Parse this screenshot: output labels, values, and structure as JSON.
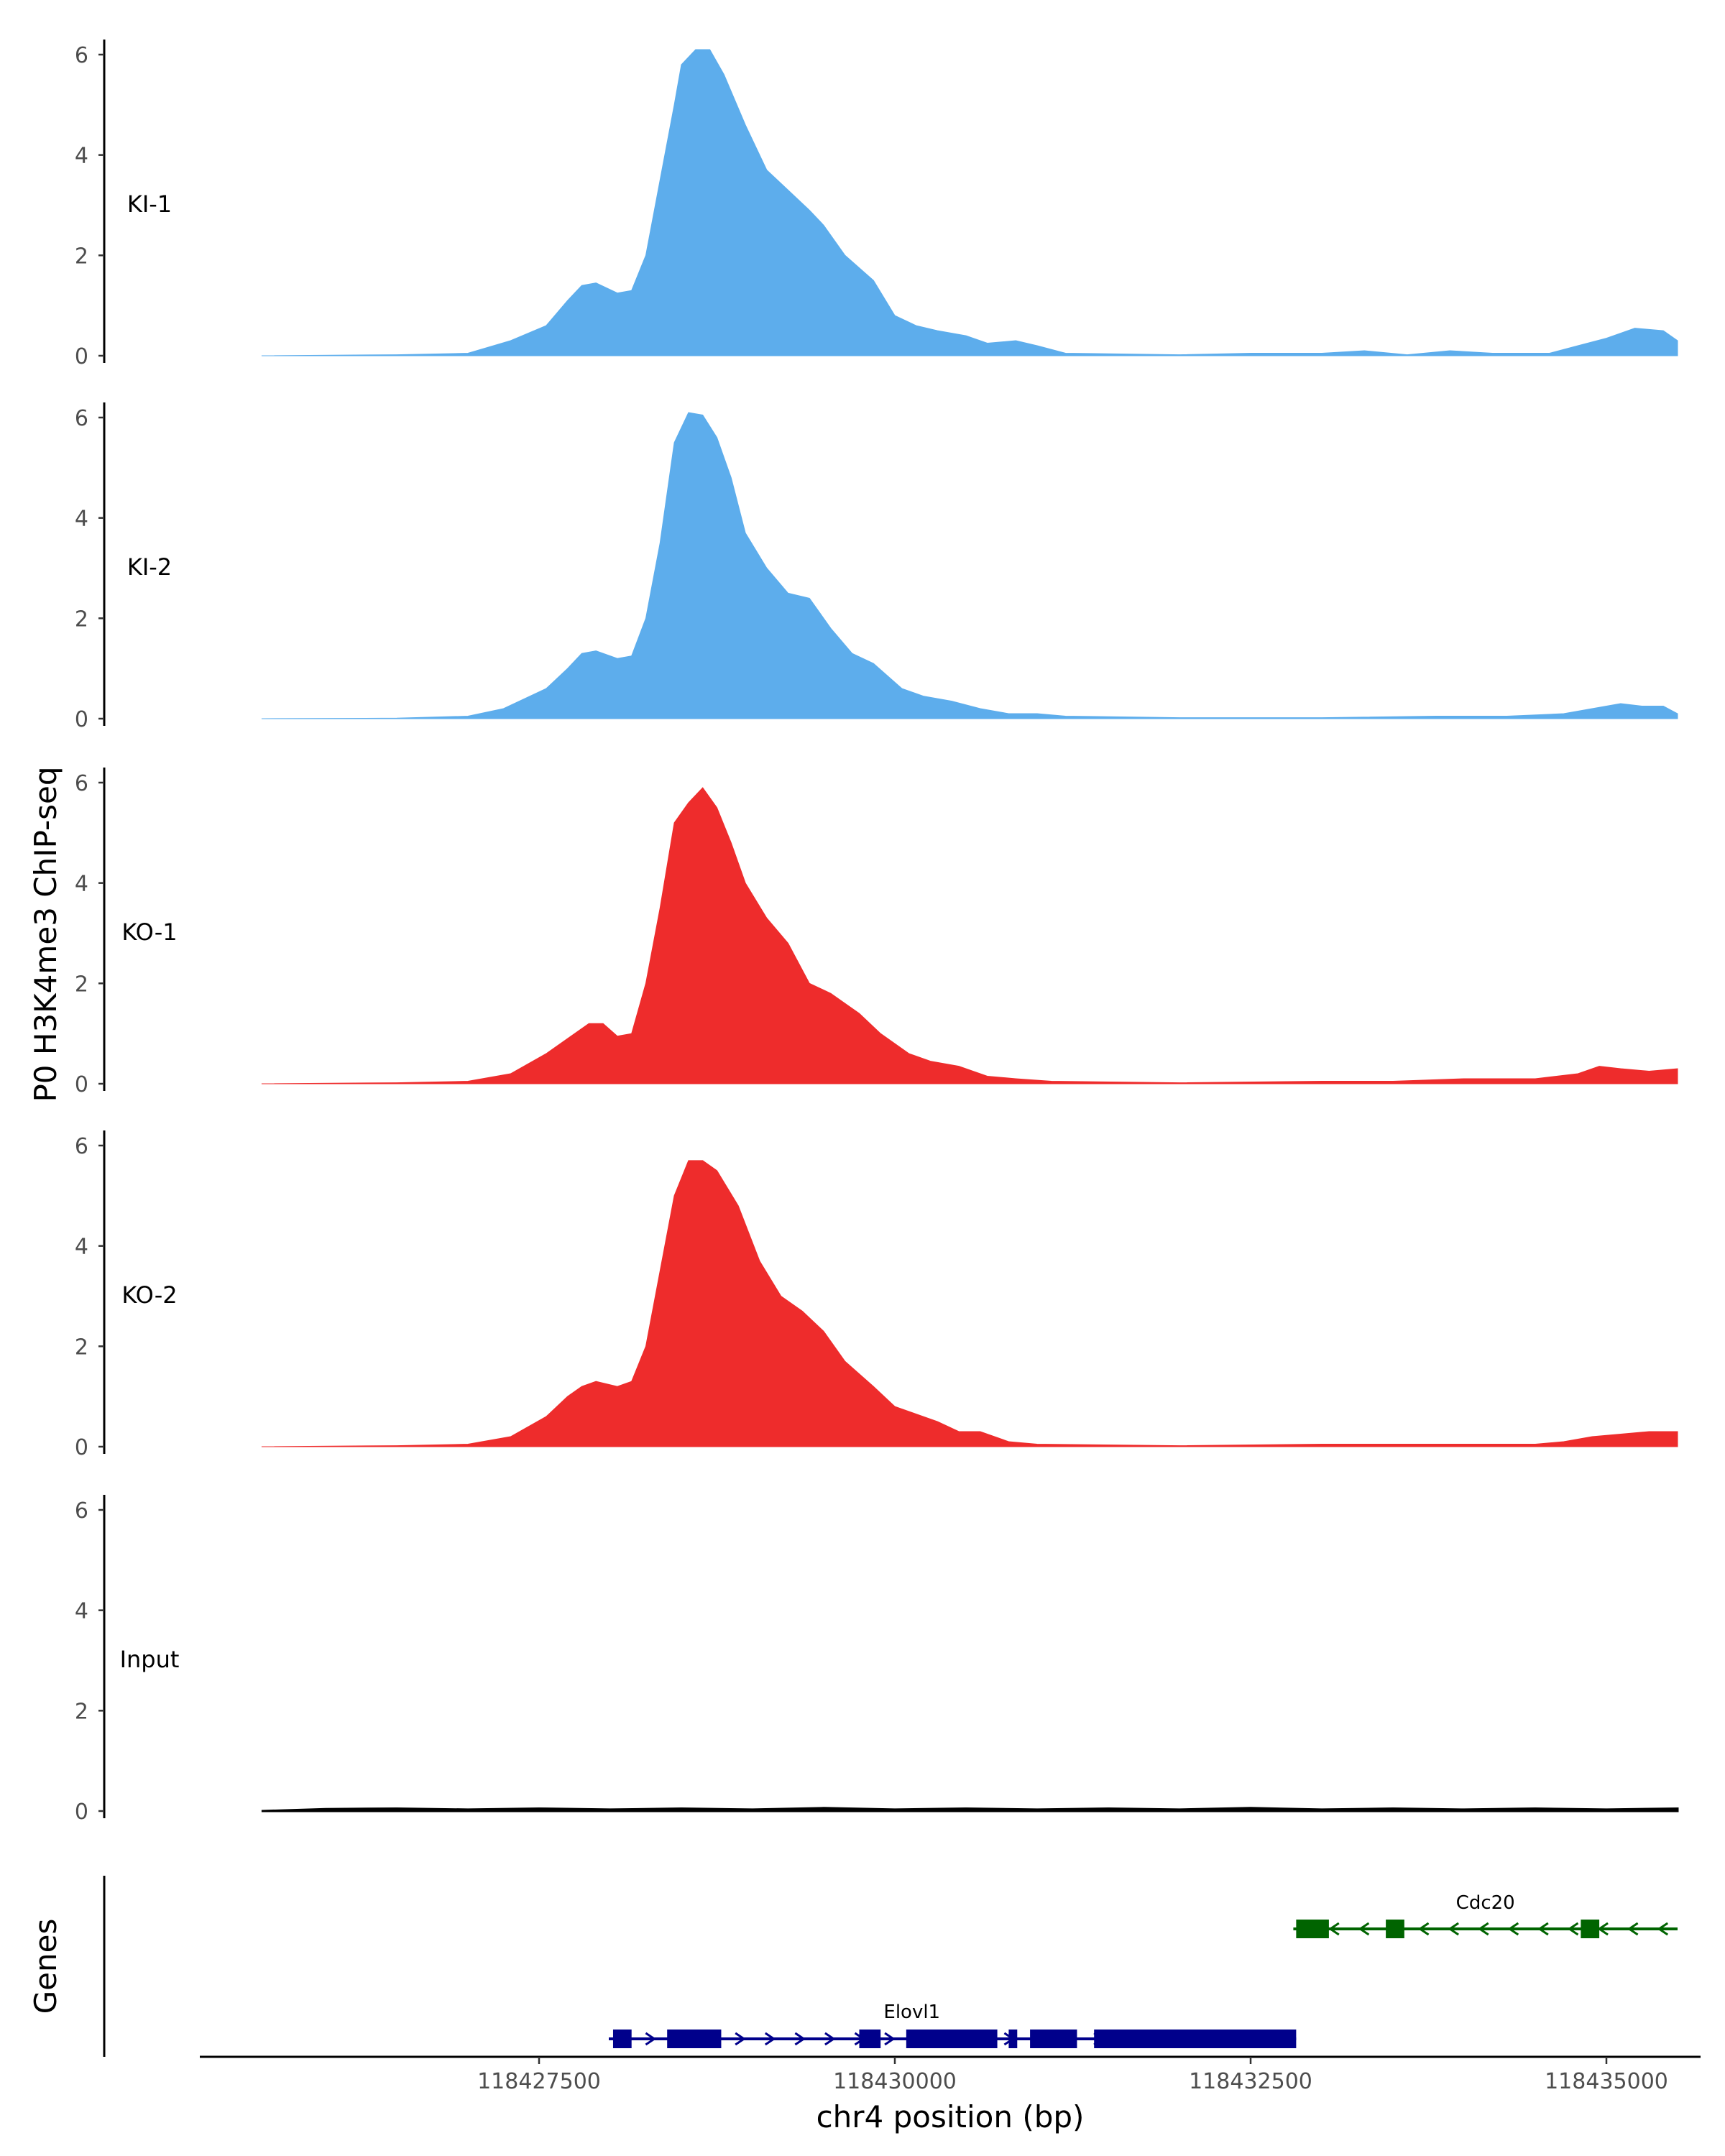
{
  "chart_data": {
    "type": "area",
    "title": "",
    "ylabel": "P0 H3K4me3 ChIP-seq",
    "xlabel": "chr4 position (bp)",
    "xlim": [
      118424300,
      118435500
    ],
    "ylim": [
      0,
      6.3
    ],
    "yticks": [
      0,
      2,
      4,
      6
    ],
    "xticks": [
      118427500,
      118430000,
      118432500,
      118435000
    ],
    "xtick_labels": [
      "118427500",
      "118430000",
      "118432500",
      "118435000"
    ],
    "tracks": [
      {
        "name": "KI-1",
        "color": "#5DADEC",
        "points": [
          [
            118425550,
            0
          ],
          [
            118426500,
            0.02
          ],
          [
            118427000,
            0.05
          ],
          [
            118427300,
            0.3
          ],
          [
            118427550,
            0.6
          ],
          [
            118427700,
            1.1
          ],
          [
            118427800,
            1.4
          ],
          [
            118427900,
            1.45
          ],
          [
            118428050,
            1.25
          ],
          [
            118428150,
            1.3
          ],
          [
            118428250,
            2.0
          ],
          [
            118428350,
            3.5
          ],
          [
            118428450,
            5.0
          ],
          [
            118428500,
            5.8
          ],
          [
            118428600,
            6.1
          ],
          [
            118428700,
            6.1
          ],
          [
            118428800,
            5.6
          ],
          [
            118428950,
            4.6
          ],
          [
            118429100,
            3.7
          ],
          [
            118429250,
            3.3
          ],
          [
            118429400,
            2.9
          ],
          [
            118429500,
            2.6
          ],
          [
            118429650,
            2.0
          ],
          [
            118429850,
            1.5
          ],
          [
            118430000,
            0.8
          ],
          [
            118430150,
            0.6
          ],
          [
            118430300,
            0.5
          ],
          [
            118430500,
            0.4
          ],
          [
            118430650,
            0.25
          ],
          [
            118430850,
            0.3
          ],
          [
            118431000,
            0.2
          ],
          [
            118431200,
            0.05
          ],
          [
            118432000,
            0.02
          ],
          [
            118432500,
            0.05
          ],
          [
            118433000,
            0.05
          ],
          [
            118433300,
            0.1
          ],
          [
            118433600,
            0.02
          ],
          [
            118433900,
            0.1
          ],
          [
            118434200,
            0.05
          ],
          [
            118434600,
            0.05
          ],
          [
            118434800,
            0.2
          ],
          [
            118435000,
            0.35
          ],
          [
            118435200,
            0.55
          ],
          [
            118435400,
            0.5
          ],
          [
            118435500,
            0.3
          ]
        ]
      },
      {
        "name": "KI-2",
        "color": "#5DADEC",
        "points": [
          [
            118425550,
            0
          ],
          [
            118426500,
            0.01
          ],
          [
            118427000,
            0.05
          ],
          [
            118427250,
            0.2
          ],
          [
            118427550,
            0.6
          ],
          [
            118427700,
            1.0
          ],
          [
            118427800,
            1.3
          ],
          [
            118427900,
            1.35
          ],
          [
            118428050,
            1.2
          ],
          [
            118428150,
            1.25
          ],
          [
            118428250,
            2.0
          ],
          [
            118428350,
            3.5
          ],
          [
            118428450,
            5.5
          ],
          [
            118428550,
            6.1
          ],
          [
            118428650,
            6.05
          ],
          [
            118428750,
            5.6
          ],
          [
            118428850,
            4.8
          ],
          [
            118428950,
            3.7
          ],
          [
            118429100,
            3.0
          ],
          [
            118429250,
            2.5
          ],
          [
            118429400,
            2.4
          ],
          [
            118429550,
            1.8
          ],
          [
            118429700,
            1.3
          ],
          [
            118429850,
            1.1
          ],
          [
            118430050,
            0.6
          ],
          [
            118430200,
            0.45
          ],
          [
            118430400,
            0.35
          ],
          [
            118430600,
            0.2
          ],
          [
            118430800,
            0.1
          ],
          [
            118431000,
            0.1
          ],
          [
            118431200,
            0.05
          ],
          [
            118432000,
            0.02
          ],
          [
            118433000,
            0.02
          ],
          [
            118433800,
            0.05
          ],
          [
            118434300,
            0.05
          ],
          [
            118434700,
            0.1
          ],
          [
            118434900,
            0.2
          ],
          [
            118435100,
            0.3
          ],
          [
            118435250,
            0.25
          ],
          [
            118435400,
            0.25
          ],
          [
            118435500,
            0.1
          ]
        ]
      },
      {
        "name": "KO-1",
        "color": "#EE2C2C",
        "points": [
          [
            118425550,
            0
          ],
          [
            118426500,
            0.02
          ],
          [
            118427000,
            0.05
          ],
          [
            118427300,
            0.2
          ],
          [
            118427550,
            0.6
          ],
          [
            118427700,
            0.9
          ],
          [
            118427850,
            1.2
          ],
          [
            118427950,
            1.2
          ],
          [
            118428050,
            0.95
          ],
          [
            118428150,
            1.0
          ],
          [
            118428250,
            2.0
          ],
          [
            118428350,
            3.5
          ],
          [
            118428450,
            5.2
          ],
          [
            118428550,
            5.6
          ],
          [
            118428650,
            5.9
          ],
          [
            118428750,
            5.5
          ],
          [
            118428850,
            4.8
          ],
          [
            118428950,
            4.0
          ],
          [
            118429100,
            3.3
          ],
          [
            118429250,
            2.8
          ],
          [
            118429400,
            2.0
          ],
          [
            118429550,
            1.8
          ],
          [
            118429750,
            1.4
          ],
          [
            118429900,
            1.0
          ],
          [
            118430100,
            0.6
          ],
          [
            118430250,
            0.45
          ],
          [
            118430450,
            0.35
          ],
          [
            118430650,
            0.15
          ],
          [
            118430850,
            0.1
          ],
          [
            118431100,
            0.05
          ],
          [
            118432000,
            0.02
          ],
          [
            118433000,
            0.05
          ],
          [
            118433500,
            0.05
          ],
          [
            118434000,
            0.1
          ],
          [
            118434500,
            0.1
          ],
          [
            118434800,
            0.2
          ],
          [
            118434950,
            0.35
          ],
          [
            118435100,
            0.3
          ],
          [
            118435300,
            0.25
          ],
          [
            118435500,
            0.3
          ]
        ]
      },
      {
        "name": "KO-2",
        "color": "#EE2C2C",
        "points": [
          [
            118425550,
            0
          ],
          [
            118426500,
            0.02
          ],
          [
            118427000,
            0.05
          ],
          [
            118427300,
            0.2
          ],
          [
            118427550,
            0.6
          ],
          [
            118427700,
            1.0
          ],
          [
            118427800,
            1.2
          ],
          [
            118427900,
            1.3
          ],
          [
            118428050,
            1.2
          ],
          [
            118428150,
            1.3
          ],
          [
            118428250,
            2.0
          ],
          [
            118428350,
            3.5
          ],
          [
            118428450,
            5.0
          ],
          [
            118428550,
            5.7
          ],
          [
            118428650,
            5.7
          ],
          [
            118428750,
            5.5
          ],
          [
            118428900,
            4.8
          ],
          [
            118429050,
            3.7
          ],
          [
            118429200,
            3.0
          ],
          [
            118429350,
            2.7
          ],
          [
            118429500,
            2.3
          ],
          [
            118429650,
            1.7
          ],
          [
            118429850,
            1.2
          ],
          [
            118430000,
            0.8
          ],
          [
            118430150,
            0.65
          ],
          [
            118430300,
            0.5
          ],
          [
            118430450,
            0.3
          ],
          [
            118430600,
            0.3
          ],
          [
            118430800,
            0.1
          ],
          [
            118431000,
            0.05
          ],
          [
            118432000,
            0.02
          ],
          [
            118433000,
            0.05
          ],
          [
            118433500,
            0.05
          ],
          [
            118434000,
            0.05
          ],
          [
            118434500,
            0.05
          ],
          [
            118434700,
            0.1
          ],
          [
            118434900,
            0.2
          ],
          [
            118435100,
            0.25
          ],
          [
            118435300,
            0.3
          ],
          [
            118435500,
            0.3
          ]
        ]
      },
      {
        "name": "Input",
        "color": "#000000",
        "points": [
          [
            118425550,
            0
          ],
          [
            118426000,
            0.04
          ],
          [
            118426500,
            0.05
          ],
          [
            118427000,
            0.03
          ],
          [
            118427500,
            0.05
          ],
          [
            118428000,
            0.03
          ],
          [
            118428500,
            0.05
          ],
          [
            118429000,
            0.03
          ],
          [
            118429500,
            0.06
          ],
          [
            118430000,
            0.03
          ],
          [
            118430500,
            0.05
          ],
          [
            118431000,
            0.03
          ],
          [
            118431500,
            0.05
          ],
          [
            118432000,
            0.03
          ],
          [
            118432500,
            0.06
          ],
          [
            118433000,
            0.03
          ],
          [
            118433500,
            0.05
          ],
          [
            118434000,
            0.03
          ],
          [
            118434500,
            0.05
          ],
          [
            118435000,
            0.03
          ],
          [
            118435500,
            0.05
          ]
        ]
      }
    ],
    "genes": {
      "title": "Genes",
      "items": [
        {
          "name": "Elovl1",
          "strand": "+",
          "color": "#00008B",
          "start": 118427990,
          "end": 118432820,
          "exons": [
            [
              118428020,
              118428150
            ],
            [
              118428400,
              118428780
            ],
            [
              118429750,
              118429900
            ],
            [
              118430080,
              118430720
            ],
            [
              118430800,
              118430860
            ],
            [
              118430950,
              118431280
            ],
            [
              118431400,
              118432820
            ]
          ]
        },
        {
          "name": "Cdc20",
          "strand": "-",
          "color": "#006400",
          "start": 118432800,
          "end": 118435500,
          "exons": [
            [
              118432820,
              118433050
            ],
            [
              118433450,
              118433580
            ],
            [
              118434820,
              118434950
            ]
          ]
        }
      ]
    }
  }
}
